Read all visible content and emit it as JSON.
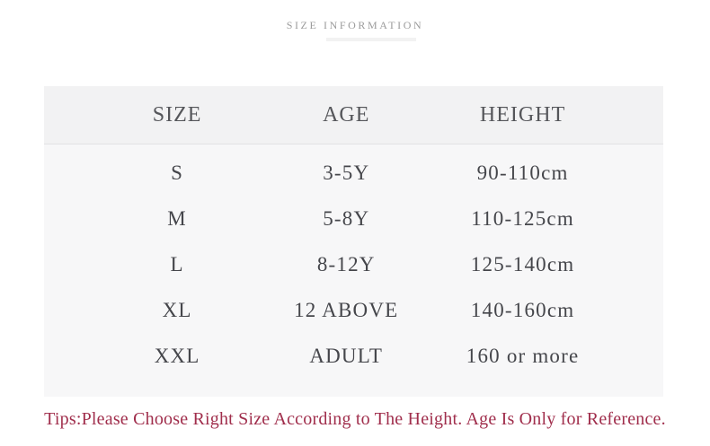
{
  "header": {
    "title": "SIZE INFORMATION"
  },
  "size_table": {
    "columns": [
      "SIZE",
      "AGE",
      "HEIGHT"
    ],
    "rows": [
      [
        "S",
        "3-5Y",
        "90-110cm"
      ],
      [
        "M",
        "5-8Y",
        "110-125cm"
      ],
      [
        "L",
        "8-12Y",
        "125-140cm"
      ],
      [
        "XL",
        "12 ABOVE",
        "140-160cm"
      ],
      [
        "XXL",
        "ADULT",
        "160 or more"
      ]
    ]
  },
  "footer": {
    "tips": "Tips:Please Choose Right Size According to The Height. Age Is Only for Reference."
  },
  "colors": {
    "title_text": "#9b9b9b",
    "table_header_band": "#f2f2f3",
    "table_body_band": "#f7f7f8",
    "table_divider": "#e2e2e4",
    "header_text": "#55565a",
    "body_text": "#45464b",
    "tips_text": "#a02e4c",
    "page_background": "#ffffff"
  }
}
